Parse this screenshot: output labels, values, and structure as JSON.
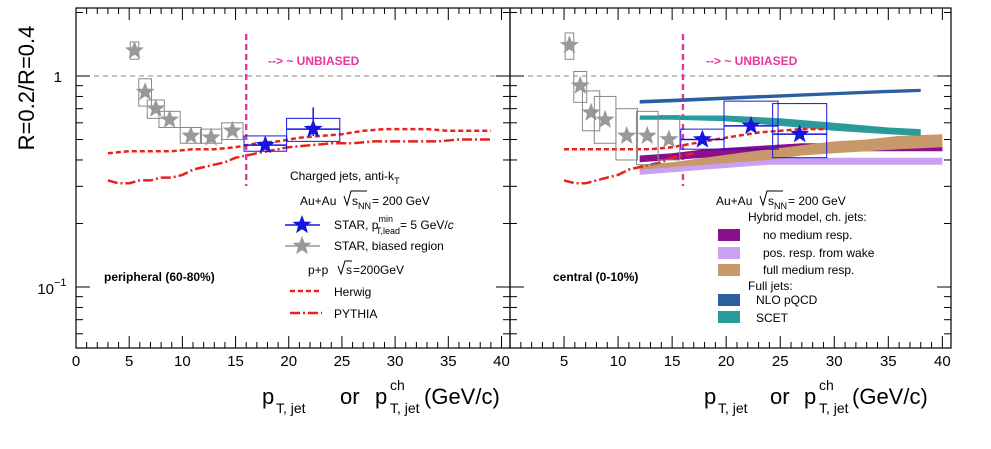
{
  "chart_data": {
    "type": "scatter",
    "y_axis": {
      "label": "R=0.2/R=0.4",
      "scale": "log",
      "ylim": [
        0.05,
        2.0
      ],
      "tick_labels": [
        "10^{-1}",
        "1"
      ]
    },
    "x_axis": {
      "label_main": "p",
      "label_sub1": "T, jet",
      "label_or": "or",
      "label_sup2": "ch",
      "label_sub2": "T, jet",
      "label_unit": "(GeV/c)",
      "xlim": [
        0,
        40
      ]
    },
    "panels": [
      {
        "id": "peripheral",
        "centrality_label": "peripheral (60-80%)",
        "unbiased_label": "--> ~ UNBIASED",
        "unbiased_x": 16,
        "tick_labels": [
          "0",
          "5",
          "10",
          "15",
          "20",
          "25",
          "30",
          "35",
          "40"
        ],
        "tick_values": [
          0,
          5,
          10,
          15,
          20,
          25,
          30,
          35,
          40
        ],
        "series": [
          {
            "name": "STAR, biased region",
            "color": "#999999",
            "marker": "star",
            "x": [
              5.5,
              6.5,
              7.5,
              8.8,
              10.8,
              12.7,
              14.7
            ],
            "y": [
              1.32,
              0.84,
              0.7,
              0.62,
              0.52,
              0.51,
              0.55
            ],
            "sys_x_halfwidth": [
              0.4,
              0.6,
              0.8,
              1.0,
              1.0,
              1.0,
              1.0
            ],
            "sys_low": [
              1.2,
              0.72,
              0.63,
              0.57,
              0.48,
              0.48,
              0.5
            ],
            "sys_high": [
              1.45,
              0.97,
              0.77,
              0.68,
              0.57,
              0.56,
              0.6
            ]
          },
          {
            "name": "STAR",
            "color": "#1515e0",
            "marker": "star",
            "x": [
              17.8,
              22.3
            ],
            "y": [
              0.47,
              0.56
            ],
            "sys_x_halfwidth": [
              2.0,
              2.5
            ],
            "sys_low": [
              0.44,
              0.49
            ],
            "sys_high": [
              0.52,
              0.63
            ],
            "stat_low": [
              0.45,
              0.52
            ],
            "stat_high": [
              0.5,
              0.71
            ]
          },
          {
            "name": "Herwig",
            "color": "#e8211b",
            "style": "dashed",
            "x": [
              3,
              5,
              7,
              9,
              11,
              13,
              15,
              17,
              19,
              21,
              23,
              25,
              27,
              29,
              31,
              33,
              35,
              37,
              39
            ],
            "y": [
              0.43,
              0.44,
              0.44,
              0.44,
              0.45,
              0.45,
              0.46,
              0.48,
              0.49,
              0.51,
              0.52,
              0.53,
              0.55,
              0.56,
              0.56,
              0.56,
              0.55,
              0.55,
              0.55
            ]
          },
          {
            "name": "PYTHIA",
            "color": "#e8211b",
            "style": "dashdot",
            "x": [
              3,
              4,
              5,
              6,
              7,
              8,
              9,
              10,
              11,
              12,
              13,
              14,
              15,
              16,
              17,
              18,
              20,
              22,
              24,
              26,
              28,
              30,
              32,
              34,
              36,
              38,
              39
            ],
            "y": [
              0.32,
              0.31,
              0.31,
              0.32,
              0.32,
              0.33,
              0.33,
              0.34,
              0.36,
              0.37,
              0.38,
              0.39,
              0.41,
              0.42,
              0.43,
              0.44,
              0.46,
              0.47,
              0.48,
              0.48,
              0.49,
              0.49,
              0.49,
              0.49,
              0.5,
              0.5,
              0.5
            ]
          }
        ]
      },
      {
        "id": "central",
        "centrality_label": "central (0-10%)",
        "unbiased_label": "--> ~ UNBIASED",
        "unbiased_x": 16,
        "tick_labels": [
          "5",
          "10",
          "15",
          "20",
          "25",
          "30",
          "35",
          "40"
        ],
        "tick_values": [
          5,
          10,
          15,
          20,
          25,
          30,
          35,
          40
        ],
        "series": [
          {
            "name": "STAR, biased region",
            "color": "#999999",
            "marker": "star",
            "x": [
              5.5,
              6.5,
              7.5,
              8.8,
              10.8,
              12.7,
              14.7
            ],
            "y": [
              1.4,
              0.9,
              0.67,
              0.62,
              0.52,
              0.52,
              0.5
            ],
            "sys_x_halfwidth": [
              0.4,
              0.6,
              0.8,
              1.0,
              1.0,
              1.0,
              1.0
            ],
            "sys_low": [
              1.2,
              0.75,
              0.55,
              0.48,
              0.4,
              0.38,
              0.4
            ],
            "sys_high": [
              1.6,
              1.05,
              0.85,
              0.8,
              0.7,
              0.68,
              0.65
            ]
          },
          {
            "name": "STAR",
            "color": "#1515e0",
            "marker": "star",
            "x": [
              17.8,
              22.3,
              26.8
            ],
            "y": [
              0.5,
              0.58,
              0.53
            ],
            "sys_x_halfwidth": [
              2.0,
              2.5,
              2.5
            ],
            "sys_low": [
              0.45,
              0.45,
              0.41
            ],
            "sys_high": [
              0.56,
              0.76,
              0.74
            ]
          },
          {
            "name": "Herwig",
            "color": "#e8211b",
            "style": "dashed",
            "x": [
              5,
              7,
              9,
              11,
              13,
              15,
              17,
              19,
              21,
              23,
              25,
              27,
              29
            ],
            "y": [
              0.45,
              0.45,
              0.45,
              0.45,
              0.45,
              0.46,
              0.48,
              0.5,
              0.52,
              0.54,
              0.55,
              0.56,
              0.56
            ]
          },
          {
            "name": "PYTHIA",
            "color": "#e8211b",
            "style": "dashdot",
            "x": [
              5,
              6,
              7,
              8,
              9,
              10,
              11,
              12,
              13,
              14,
              15,
              16,
              17
            ],
            "y": [
              0.32,
              0.31,
              0.31,
              0.32,
              0.33,
              0.34,
              0.36,
              0.37,
              0.38,
              0.39,
              0.41,
              0.42,
              0.43
            ]
          },
          {
            "name": "no medium resp.",
            "color": "#8b0f8b",
            "style": "band",
            "x": [
              12,
              15,
              18,
              21,
              24,
              27,
              30,
              33,
              36,
              40
            ],
            "y_low": [
              0.39,
              0.4,
              0.41,
              0.42,
              0.43,
              0.44,
              0.44,
              0.44,
              0.44,
              0.44
            ],
            "y_high": [
              0.42,
              0.43,
              0.45,
              0.46,
              0.47,
              0.48,
              0.48,
              0.48,
              0.48,
              0.48
            ]
          },
          {
            "name": "pos. resp. from wake",
            "color": "#c9a0f2",
            "style": "band",
            "x": [
              12,
              15,
              18,
              21,
              24,
              27,
              30,
              33,
              36,
              40
            ],
            "y_low": [
              0.34,
              0.35,
              0.36,
              0.37,
              0.38,
              0.38,
              0.38,
              0.38,
              0.38,
              0.38
            ],
            "y_high": [
              0.37,
              0.38,
              0.39,
              0.4,
              0.41,
              0.41,
              0.41,
              0.41,
              0.41,
              0.41
            ]
          },
          {
            "name": "full medium resp.",
            "color": "#c8986a",
            "style": "band",
            "x": [
              12,
              15,
              18,
              21,
              24,
              27,
              30,
              33,
              36,
              40
            ],
            "y_low": [
              0.36,
              0.37,
              0.38,
              0.39,
              0.4,
              0.42,
              0.43,
              0.44,
              0.45,
              0.46
            ],
            "y_high": [
              0.38,
              0.39,
              0.41,
              0.43,
              0.45,
              0.47,
              0.49,
              0.5,
              0.52,
              0.53
            ]
          },
          {
            "name": "NLO pQCD",
            "color": "#2c5f9e",
            "style": "band",
            "x": [
              12,
              15,
              20,
              25,
              30,
              35,
              38
            ],
            "y_low": [
              0.74,
              0.75,
              0.77,
              0.79,
              0.81,
              0.83,
              0.84
            ],
            "y_high": [
              0.77,
              0.78,
              0.8,
              0.82,
              0.84,
              0.86,
              0.87
            ]
          },
          {
            "name": "SCET",
            "color": "#2a9a9a",
            "style": "band",
            "x": [
              12,
              15,
              20,
              25,
              30,
              35,
              38
            ],
            "y_low": [
              0.62,
              0.62,
              0.61,
              0.58,
              0.55,
              0.53,
              0.52
            ],
            "y_high": [
              0.65,
              0.65,
              0.65,
              0.63,
              0.6,
              0.57,
              0.56
            ]
          }
        ]
      }
    ]
  },
  "legend_left": {
    "header1": "Charged jets, anti-k",
    "header1_sub": "T",
    "collision_label": "Au+Au",
    "sqrt_label": "s",
    "sqrt_sub": "NN",
    "energy": "= 200 GeV",
    "star_label": "STAR, p",
    "star_sup": "min",
    "star_sub": "T,lead",
    "star_rest": "= 5 GeV/",
    "star_c": "c",
    "biased_label": "STAR, biased region",
    "pp_label": "p+p",
    "pp_sqrt": "s",
    "pp_energy": "=200GeV",
    "herwig_label": "Herwig",
    "pythia_label": "PYTHIA"
  },
  "legend_right": {
    "collision_label": "Au+Au",
    "sqrt_label": "s",
    "sqrt_sub": "NN",
    "energy": "= 200 GeV",
    "hybrid_header": "Hybrid model, ch. jets:",
    "no_medium": "no medium resp.",
    "pos_resp": "pos. resp. from wake",
    "full_medium": "full medium resp.",
    "full_jets_header": "Full jets:",
    "nlo": "NLO pQCD",
    "scet": "SCET"
  }
}
